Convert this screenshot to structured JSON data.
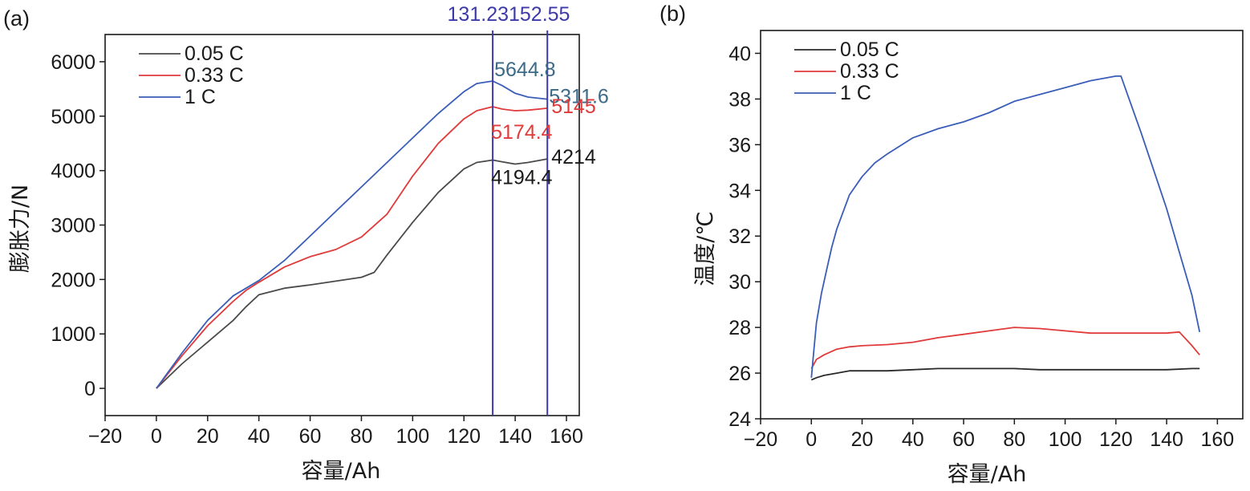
{
  "chart_data": [
    {
      "panel_label": "(a)",
      "type": "line",
      "xlabel": "容量/Ah",
      "ylabel": "膨胀力/N",
      "xlim": [
        -20,
        165
      ],
      "ylim": [
        -500,
        6500
      ],
      "xticks": [
        "−20",
        "0",
        "20",
        "40",
        "60",
        "80",
        "100",
        "120",
        "140",
        "160"
      ],
      "xtick_values": [
        -20,
        0,
        20,
        40,
        60,
        80,
        100,
        120,
        140,
        160
      ],
      "yticks": [
        "0",
        "1000",
        "2000",
        "3000",
        "4000",
        "5000",
        "6000"
      ],
      "ytick_values": [
        0,
        1000,
        2000,
        3000,
        4000,
        5000,
        6000
      ],
      "legend": "top-left",
      "series": [
        {
          "name": "0.05 C",
          "color": "#4a4a4a",
          "x": [
            0,
            10,
            20,
            30,
            35,
            40,
            50,
            60,
            70,
            80,
            85,
            90,
            100,
            110,
            120,
            125,
            131.23,
            135,
            140,
            145,
            152.55
          ],
          "y": [
            0,
            450,
            850,
            1250,
            1500,
            1720,
            1840,
            1900,
            1970,
            2040,
            2130,
            2450,
            3050,
            3600,
            4030,
            4150,
            4194.4,
            4160,
            4120,
            4150,
            4214
          ]
        },
        {
          "name": "0.33 C",
          "color": "#e03a3a",
          "x": [
            0,
            10,
            20,
            30,
            35,
            40,
            50,
            60,
            70,
            80,
            90,
            100,
            110,
            120,
            125,
            131.23,
            135,
            140,
            145,
            152.55
          ],
          "y": [
            0,
            600,
            1150,
            1600,
            1800,
            1950,
            2230,
            2420,
            2550,
            2780,
            3200,
            3900,
            4500,
            4950,
            5100,
            5174.4,
            5130,
            5100,
            5110,
            5145
          ]
        },
        {
          "name": "1 C",
          "color": "#3a5db8",
          "x": [
            0,
            10,
            20,
            30,
            40,
            50,
            60,
            70,
            80,
            90,
            100,
            110,
            120,
            125,
            131.23,
            135,
            140,
            145,
            152.55
          ],
          "y": [
            0,
            650,
            1250,
            1700,
            1980,
            2350,
            2800,
            3250,
            3700,
            4150,
            4600,
            5050,
            5450,
            5600,
            5644.8,
            5560,
            5420,
            5350,
            5311.6
          ]
        }
      ],
      "markers": {
        "color": "#3d3aa8",
        "x": [
          131.23,
          152.55
        ],
        "labels": [
          "131.23",
          "152.55"
        ]
      },
      "annotations": [
        {
          "text": "5644.8",
          "color": "#3a6a88",
          "x": 131.23,
          "y": 5644.8
        },
        {
          "text": "5311.6",
          "color": "#3a6a88",
          "x": 152.55,
          "y": 5311.6
        },
        {
          "text": "5145",
          "color": "#e03a3a",
          "x": 152.55,
          "y": 5145
        },
        {
          "text": "5174.4",
          "color": "#e03a3a",
          "x": 131.23,
          "y": 5174.4
        },
        {
          "text": "4214",
          "color": "#1a1a1a",
          "x": 152.55,
          "y": 4214
        },
        {
          "text": "4194.4",
          "color": "#1a1a1a",
          "x": 131.23,
          "y": 4194.4
        }
      ]
    },
    {
      "panel_label": "(b)",
      "type": "line",
      "xlabel": "容量/Ah",
      "ylabel": "温度/℃",
      "xlim": [
        -20,
        170
      ],
      "ylim": [
        24,
        41
      ],
      "xticks": [
        "−20",
        "0",
        "20",
        "40",
        "60",
        "80",
        "100",
        "120",
        "140",
        "160"
      ],
      "xtick_values": [
        -20,
        0,
        20,
        40,
        60,
        80,
        100,
        120,
        140,
        160
      ],
      "yticks": [
        "24",
        "26",
        "28",
        "30",
        "32",
        "34",
        "36",
        "38",
        "40"
      ],
      "ytick_values": [
        24,
        26,
        28,
        30,
        32,
        34,
        36,
        38,
        40
      ],
      "legend": "top-left",
      "series": [
        {
          "name": "0.05 C",
          "color": "#2a2a2a",
          "x": [
            0,
            2,
            5,
            10,
            15,
            20,
            30,
            40,
            50,
            60,
            70,
            80,
            90,
            100,
            110,
            120,
            130,
            140,
            150,
            153
          ],
          "y": [
            25.7,
            25.8,
            25.9,
            26.0,
            26.1,
            26.1,
            26.1,
            26.15,
            26.2,
            26.2,
            26.2,
            26.2,
            26.15,
            26.15,
            26.15,
            26.15,
            26.15,
            26.15,
            26.2,
            26.2
          ]
        },
        {
          "name": "0.33 C",
          "color": "#e03a3a",
          "x": [
            0,
            2,
            5,
            10,
            15,
            20,
            30,
            40,
            50,
            60,
            70,
            80,
            90,
            100,
            110,
            120,
            130,
            140,
            145,
            150,
            153
          ],
          "y": [
            26.2,
            26.6,
            26.8,
            27.05,
            27.15,
            27.2,
            27.25,
            27.35,
            27.55,
            27.7,
            27.85,
            28.0,
            27.95,
            27.85,
            27.75,
            27.75,
            27.75,
            27.75,
            27.8,
            27.2,
            26.8
          ]
        },
        {
          "name": "1 C",
          "color": "#3a5db8",
          "x": [
            0,
            1,
            2,
            4,
            6,
            8,
            10,
            15,
            20,
            25,
            30,
            40,
            50,
            60,
            70,
            80,
            90,
            100,
            110,
            120,
            122,
            130,
            140,
            150,
            153
          ],
          "y": [
            25.8,
            27.0,
            28.2,
            29.5,
            30.5,
            31.5,
            32.3,
            33.8,
            34.6,
            35.2,
            35.6,
            36.3,
            36.7,
            37.0,
            37.4,
            37.9,
            38.2,
            38.5,
            38.8,
            39.0,
            39.0,
            36.5,
            33.2,
            29.4,
            27.8
          ]
        }
      ]
    }
  ]
}
